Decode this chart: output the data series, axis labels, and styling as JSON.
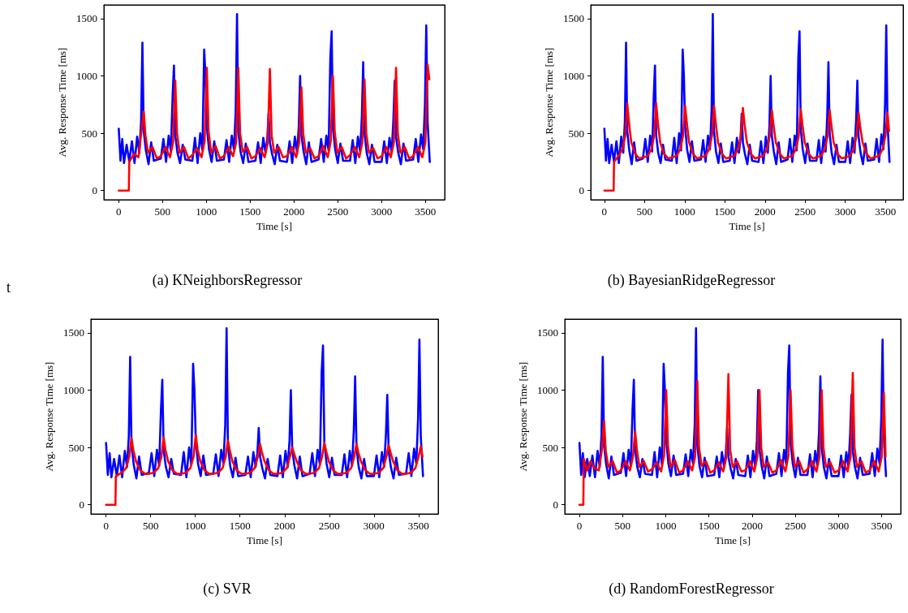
{
  "chart_data": [
    {
      "type": "line",
      "title": "(a) KNeighborsRegressor",
      "xlabel": "Time [s]",
      "ylabel": "Avg. Response Time [ms]",
      "xlim": [
        -170,
        3720
      ],
      "ylim": [
        -80,
        1620
      ],
      "xticks": [
        0,
        500,
        1000,
        1500,
        2000,
        2500,
        3000,
        3500
      ],
      "yticks": [
        0,
        500,
        1000,
        1500
      ],
      "annotations": [
        "t"
      ],
      "x": [
        0,
        20,
        40,
        60,
        90,
        120,
        150,
        180,
        210,
        235,
        255,
        270,
        285,
        310,
        340,
        370,
        400,
        480,
        510,
        540,
        570,
        595,
        615,
        630,
        645,
        670,
        700,
        730,
        760,
        840,
        870,
        900,
        930,
        955,
        975,
        990,
        1005,
        1030,
        1060,
        1090,
        1120,
        1200,
        1230,
        1260,
        1290,
        1315,
        1335,
        1350,
        1365,
        1390,
        1420,
        1450,
        1480,
        1560,
        1590,
        1620,
        1650,
        1675,
        1695,
        1710,
        1725,
        1750,
        1780,
        1810,
        1840,
        1920,
        1950,
        1980,
        2010,
        2035,
        2055,
        2070,
        2085,
        2110,
        2140,
        2170,
        2200,
        2280,
        2310,
        2340,
        2370,
        2395,
        2415,
        2430,
        2445,
        2470,
        2500,
        2530,
        2560,
        2640,
        2670,
        2700,
        2730,
        2755,
        2775,
        2790,
        2805,
        2830,
        2860,
        2890,
        2920,
        3000,
        3030,
        3060,
        3090,
        3115,
        3135,
        3150,
        3165,
        3190,
        3220,
        3250,
        3280,
        3360,
        3390,
        3420,
        3450,
        3475,
        3495,
        3510,
        3525,
        3550
      ],
      "series": [
        {
          "color": "#0000ff",
          "values": [
            540,
            260,
            450,
            240,
            400,
            250,
            430,
            240,
            470,
            330,
            600,
            1290,
            520,
            350,
            230,
            420,
            260,
            280,
            450,
            250,
            480,
            340,
            830,
            1090,
            480,
            330,
            240,
            400,
            270,
            260,
            460,
            240,
            500,
            350,
            1230,
            1000,
            560,
            360,
            250,
            430,
            260,
            270,
            440,
            250,
            480,
            360,
            700,
            1540,
            520,
            340,
            240,
            410,
            250,
            260,
            420,
            240,
            460,
            330,
            450,
            670,
            420,
            320,
            230,
            400,
            260,
            250,
            430,
            240,
            470,
            330,
            560,
            1000,
            480,
            340,
            230,
            420,
            250,
            270,
            450,
            250,
            480,
            350,
            1160,
            1390,
            540,
            360,
            240,
            410,
            260,
            260,
            440,
            240,
            470,
            340,
            650,
            1120,
            500,
            330,
            230,
            400,
            250,
            250,
            430,
            240,
            460,
            330,
            620,
            960,
            470,
            330,
            230,
            410,
            260,
            270,
            450,
            250,
            490,
            360,
            750,
            1440,
            600,
            250
          ]
        },
        {
          "color": "#ff0000",
          "x": [
            0,
            115,
            120,
            175,
            225,
            260,
            285,
            305,
            335,
            385,
            435,
            480,
            535,
            585,
            620,
            645,
            665,
            695,
            745,
            795,
            840,
            895,
            945,
            980,
            1005,
            1025,
            1055,
            1105,
            1155,
            1200,
            1255,
            1305,
            1340,
            1365,
            1385,
            1415,
            1465,
            1515,
            1560,
            1615,
            1665,
            1700,
            1725,
            1745,
            1775,
            1825,
            1875,
            1920,
            1975,
            2025,
            2060,
            2085,
            2105,
            2135,
            2185,
            2235,
            2280,
            2335,
            2385,
            2420,
            2445,
            2465,
            2495,
            2545,
            2595,
            2640,
            2695,
            2745,
            2780,
            2805,
            2825,
            2855,
            2905,
            2955,
            3000,
            3055,
            3105,
            3140,
            3165,
            3185,
            3215,
            3265,
            3315,
            3360,
            3415,
            3465,
            3500,
            3525,
            3545
          ],
          "values": [
            0,
            0,
            250,
            320,
            290,
            520,
            690,
            480,
            330,
            380,
            280,
            300,
            380,
            290,
            420,
            960,
            500,
            330,
            380,
            280,
            310,
            370,
            290,
            430,
            1070,
            520,
            330,
            390,
            280,
            300,
            380,
            300,
            420,
            1070,
            500,
            340,
            380,
            280,
            300,
            370,
            290,
            410,
            1060,
            480,
            330,
            380,
            290,
            300,
            380,
            290,
            420,
            900,
            500,
            330,
            370,
            280,
            300,
            390,
            290,
            430,
            1000,
            510,
            330,
            380,
            280,
            310,
            380,
            290,
            420,
            970,
            500,
            330,
            370,
            280,
            300,
            380,
            290,
            420,
            1070,
            500,
            330,
            380,
            280,
            300,
            380,
            290,
            420,
            1100,
            970
          ]
        }
      ]
    },
    {
      "type": "line",
      "title": "(b) BayesianRidgeRegressor",
      "xlabel": "Time [s]",
      "ylabel": "Avg. Response Time [ms]",
      "xlim": [
        -170,
        3720
      ],
      "ylim": [
        -80,
        1620
      ],
      "xticks": [
        0,
        500,
        1000,
        1500,
        2000,
        2500,
        3000,
        3500
      ],
      "yticks": [
        0,
        500,
        1000,
        1500
      ],
      "x": [
        0,
        20,
        40,
        60,
        90,
        120,
        150,
        180,
        210,
        235,
        255,
        270,
        285,
        310,
        340,
        370,
        400,
        480,
        510,
        540,
        570,
        595,
        615,
        630,
        645,
        670,
        700,
        730,
        760,
        840,
        870,
        900,
        930,
        955,
        975,
        990,
        1005,
        1030,
        1060,
        1090,
        1120,
        1200,
        1230,
        1260,
        1290,
        1315,
        1335,
        1350,
        1365,
        1390,
        1420,
        1450,
        1480,
        1560,
        1590,
        1620,
        1650,
        1675,
        1695,
        1710,
        1725,
        1750,
        1780,
        1810,
        1840,
        1920,
        1950,
        1980,
        2010,
        2035,
        2055,
        2070,
        2085,
        2110,
        2140,
        2170,
        2200,
        2280,
        2310,
        2340,
        2370,
        2395,
        2415,
        2430,
        2445,
        2470,
        2500,
        2530,
        2560,
        2640,
        2670,
        2700,
        2730,
        2755,
        2775,
        2790,
        2805,
        2830,
        2860,
        2890,
        2920,
        3000,
        3030,
        3060,
        3090,
        3115,
        3135,
        3150,
        3165,
        3190,
        3220,
        3250,
        3280,
        3360,
        3390,
        3420,
        3450,
        3475,
        3495,
        3510,
        3525,
        3550
      ],
      "series": [
        {
          "color": "#0000ff",
          "values": [
            540,
            260,
            450,
            240,
            400,
            250,
            430,
            240,
            470,
            330,
            600,
            1290,
            520,
            350,
            230,
            420,
            260,
            280,
            450,
            250,
            480,
            340,
            830,
            1090,
            480,
            330,
            240,
            400,
            270,
            260,
            460,
            240,
            500,
            350,
            1230,
            1000,
            560,
            360,
            250,
            430,
            260,
            270,
            440,
            250,
            480,
            360,
            700,
            1540,
            520,
            340,
            240,
            410,
            250,
            260,
            420,
            240,
            460,
            330,
            450,
            670,
            420,
            320,
            230,
            400,
            260,
            250,
            430,
            240,
            470,
            330,
            560,
            1000,
            480,
            340,
            230,
            420,
            250,
            270,
            450,
            250,
            480,
            350,
            1160,
            1390,
            540,
            360,
            240,
            410,
            260,
            260,
            440,
            240,
            470,
            340,
            650,
            1120,
            500,
            330,
            230,
            400,
            250,
            250,
            430,
            240,
            460,
            330,
            620,
            960,
            470,
            330,
            230,
            410,
            260,
            270,
            450,
            250,
            490,
            360,
            750,
            1440,
            600,
            250
          ]
        },
        {
          "color": "#ff0000",
          "x": [
            0,
            115,
            120,
            175,
            225,
            260,
            285,
            305,
            335,
            385,
            435,
            480,
            535,
            585,
            620,
            645,
            665,
            695,
            745,
            795,
            840,
            895,
            945,
            980,
            1005,
            1025,
            1055,
            1105,
            1155,
            1200,
            1255,
            1305,
            1340,
            1365,
            1385,
            1415,
            1465,
            1515,
            1560,
            1615,
            1665,
            1700,
            1725,
            1745,
            1775,
            1825,
            1875,
            1920,
            1975,
            2025,
            2060,
            2085,
            2105,
            2135,
            2185,
            2235,
            2280,
            2335,
            2385,
            2420,
            2445,
            2465,
            2495,
            2545,
            2595,
            2640,
            2695,
            2745,
            2780,
            2805,
            2825,
            2855,
            2905,
            2955,
            3000,
            3055,
            3105,
            3140,
            3165,
            3185,
            3215,
            3265,
            3315,
            3360,
            3415,
            3465,
            3500,
            3525,
            3545
          ],
          "values": [
            0,
            0,
            250,
            300,
            360,
            480,
            760,
            600,
            420,
            320,
            280,
            290,
            300,
            360,
            480,
            760,
            600,
            420,
            320,
            280,
            290,
            300,
            360,
            480,
            740,
            600,
            420,
            320,
            280,
            290,
            300,
            360,
            480,
            740,
            600,
            420,
            320,
            280,
            290,
            300,
            360,
            480,
            720,
            580,
            420,
            320,
            280,
            290,
            300,
            360,
            480,
            700,
            580,
            420,
            320,
            280,
            290,
            300,
            360,
            480,
            710,
            580,
            420,
            320,
            280,
            290,
            300,
            360,
            480,
            700,
            580,
            420,
            320,
            280,
            290,
            300,
            360,
            480,
            680,
            560,
            420,
            320,
            280,
            290,
            300,
            360,
            480,
            680,
            520
          ]
        }
      ]
    },
    {
      "type": "line",
      "title": "(c) SVR",
      "xlabel": "Time [s]",
      "ylabel": "Avg. Response Time [ms]",
      "xlim": [
        -170,
        3720
      ],
      "ylim": [
        -80,
        1620
      ],
      "xticks": [
        0,
        500,
        1000,
        1500,
        2000,
        2500,
        3000,
        3500
      ],
      "yticks": [
        0,
        500,
        1000,
        1500
      ],
      "x": [
        0,
        20,
        40,
        60,
        90,
        120,
        150,
        180,
        210,
        235,
        255,
        270,
        285,
        310,
        340,
        370,
        400,
        480,
        510,
        540,
        570,
        595,
        615,
        630,
        645,
        670,
        700,
        730,
        760,
        840,
        870,
        900,
        930,
        955,
        975,
        990,
        1005,
        1030,
        1060,
        1090,
        1120,
        1200,
        1230,
        1260,
        1290,
        1315,
        1335,
        1350,
        1365,
        1390,
        1420,
        1450,
        1480,
        1560,
        1590,
        1620,
        1650,
        1675,
        1695,
        1710,
        1725,
        1750,
        1780,
        1810,
        1840,
        1920,
        1950,
        1980,
        2010,
        2035,
        2055,
        2070,
        2085,
        2110,
        2140,
        2170,
        2200,
        2280,
        2310,
        2340,
        2370,
        2395,
        2415,
        2430,
        2445,
        2470,
        2500,
        2530,
        2560,
        2640,
        2670,
        2700,
        2730,
        2755,
        2775,
        2790,
        2805,
        2830,
        2860,
        2890,
        2920,
        3000,
        3030,
        3060,
        3090,
        3115,
        3135,
        3150,
        3165,
        3190,
        3220,
        3250,
        3280,
        3360,
        3390,
        3420,
        3450,
        3475,
        3495,
        3510,
        3525,
        3550
      ],
      "series": [
        {
          "color": "#0000ff",
          "values": [
            540,
            260,
            450,
            240,
            400,
            250,
            430,
            240,
            470,
            330,
            600,
            1290,
            520,
            350,
            230,
            420,
            260,
            280,
            450,
            250,
            480,
            340,
            830,
            1090,
            480,
            330,
            240,
            400,
            270,
            260,
            460,
            240,
            500,
            350,
            1230,
            1000,
            560,
            360,
            250,
            430,
            260,
            270,
            440,
            250,
            480,
            360,
            700,
            1540,
            520,
            340,
            240,
            410,
            250,
            260,
            420,
            240,
            460,
            330,
            450,
            670,
            420,
            320,
            230,
            400,
            260,
            250,
            430,
            240,
            470,
            330,
            560,
            1000,
            480,
            340,
            230,
            420,
            250,
            270,
            450,
            250,
            480,
            350,
            1160,
            1390,
            540,
            360,
            240,
            410,
            260,
            260,
            440,
            240,
            470,
            340,
            650,
            1120,
            500,
            330,
            230,
            400,
            250,
            250,
            430,
            240,
            460,
            330,
            620,
            960,
            470,
            330,
            230,
            410,
            260,
            270,
            450,
            250,
            490,
            360,
            750,
            1440,
            600,
            250
          ]
        },
        {
          "color": "#ff0000",
          "x": [
            0,
            105,
            110,
            175,
            225,
            260,
            285,
            305,
            335,
            385,
            435,
            480,
            535,
            585,
            620,
            645,
            665,
            695,
            745,
            795,
            840,
            895,
            945,
            980,
            1005,
            1025,
            1055,
            1105,
            1155,
            1200,
            1255,
            1305,
            1340,
            1365,
            1385,
            1415,
            1465,
            1515,
            1560,
            1615,
            1665,
            1700,
            1725,
            1745,
            1775,
            1825,
            1875,
            1920,
            1975,
            2025,
            2060,
            2085,
            2105,
            2135,
            2185,
            2235,
            2280,
            2335,
            2385,
            2420,
            2445,
            2465,
            2495,
            2545,
            2595,
            2640,
            2695,
            2745,
            2780,
            2805,
            2825,
            2855,
            2905,
            2955,
            3000,
            3055,
            3105,
            3140,
            3165,
            3185,
            3215,
            3265,
            3315,
            3360,
            3415,
            3465,
            3500,
            3525,
            3545
          ],
          "values": [
            0,
            0,
            250,
            280,
            320,
            420,
            580,
            480,
            380,
            300,
            270,
            270,
            280,
            320,
            420,
            590,
            480,
            380,
            300,
            270,
            270,
            280,
            320,
            420,
            610,
            480,
            380,
            300,
            270,
            270,
            280,
            320,
            420,
            560,
            480,
            380,
            300,
            270,
            270,
            280,
            320,
            420,
            530,
            460,
            380,
            300,
            270,
            270,
            280,
            320,
            420,
            500,
            450,
            380,
            300,
            270,
            270,
            280,
            320,
            420,
            540,
            470,
            380,
            300,
            270,
            270,
            280,
            320,
            420,
            530,
            460,
            380,
            300,
            270,
            270,
            280,
            320,
            420,
            520,
            460,
            380,
            300,
            270,
            270,
            280,
            320,
            420,
            510,
            420
          ]
        }
      ]
    },
    {
      "type": "line",
      "title": "(d) RandomForestRegressor",
      "xlabel": "Time [s]",
      "ylabel": "Avg. Response Time [ms]",
      "xlim": [
        -170,
        3720
      ],
      "ylim": [
        -80,
        1620
      ],
      "xticks": [
        0,
        500,
        1000,
        1500,
        2000,
        2500,
        3000,
        3500
      ],
      "yticks": [
        0,
        500,
        1000,
        1500
      ],
      "x": [
        0,
        20,
        40,
        60,
        90,
        120,
        150,
        180,
        210,
        235,
        255,
        270,
        285,
        310,
        340,
        370,
        400,
        480,
        510,
        540,
        570,
        595,
        615,
        630,
        645,
        670,
        700,
        730,
        760,
        840,
        870,
        900,
        930,
        955,
        975,
        990,
        1005,
        1030,
        1060,
        1090,
        1120,
        1200,
        1230,
        1260,
        1290,
        1315,
        1335,
        1350,
        1365,
        1390,
        1420,
        1450,
        1480,
        1560,
        1590,
        1620,
        1650,
        1675,
        1695,
        1710,
        1725,
        1750,
        1780,
        1810,
        1840,
        1920,
        1950,
        1980,
        2010,
        2035,
        2055,
        2070,
        2085,
        2110,
        2140,
        2170,
        2200,
        2280,
        2310,
        2340,
        2370,
        2395,
        2415,
        2430,
        2445,
        2470,
        2500,
        2530,
        2560,
        2640,
        2670,
        2700,
        2730,
        2755,
        2775,
        2790,
        2805,
        2830,
        2860,
        2890,
        2920,
        3000,
        3030,
        3060,
        3090,
        3115,
        3135,
        3150,
        3165,
        3190,
        3220,
        3250,
        3280,
        3360,
        3390,
        3420,
        3450,
        3475,
        3495,
        3510,
        3525,
        3550
      ],
      "series": [
        {
          "color": "#0000ff",
          "values": [
            540,
            260,
            450,
            240,
            400,
            250,
            430,
            240,
            470,
            330,
            600,
            1290,
            520,
            350,
            230,
            420,
            260,
            280,
            450,
            250,
            480,
            340,
            830,
            1090,
            480,
            330,
            240,
            400,
            270,
            260,
            460,
            240,
            500,
            350,
            1230,
            1000,
            560,
            360,
            250,
            430,
            260,
            270,
            440,
            250,
            480,
            360,
            700,
            1540,
            520,
            340,
            240,
            410,
            250,
            260,
            420,
            240,
            460,
            330,
            450,
            670,
            420,
            320,
            230,
            400,
            260,
            250,
            430,
            240,
            470,
            330,
            560,
            1000,
            480,
            340,
            230,
            420,
            250,
            270,
            450,
            250,
            480,
            350,
            1160,
            1390,
            540,
            360,
            240,
            410,
            260,
            260,
            440,
            240,
            470,
            340,
            650,
            1120,
            500,
            330,
            230,
            400,
            250,
            250,
            430,
            240,
            460,
            330,
            620,
            960,
            470,
            330,
            230,
            410,
            260,
            270,
            450,
            250,
            490,
            360,
            750,
            1440,
            600,
            250
          ]
        },
        {
          "color": "#ff0000",
          "x": [
            0,
            45,
            50,
            90,
            130,
            175,
            225,
            260,
            285,
            305,
            335,
            385,
            435,
            480,
            535,
            585,
            620,
            645,
            665,
            695,
            745,
            795,
            840,
            895,
            945,
            980,
            1005,
            1025,
            1055,
            1105,
            1155,
            1200,
            1255,
            1305,
            1340,
            1365,
            1385,
            1415,
            1465,
            1515,
            1560,
            1615,
            1665,
            1700,
            1725,
            1745,
            1775,
            1825,
            1875,
            1920,
            1975,
            2025,
            2060,
            2085,
            2105,
            2135,
            2185,
            2235,
            2280,
            2335,
            2385,
            2420,
            2445,
            2465,
            2495,
            2545,
            2595,
            2640,
            2695,
            2745,
            2780,
            2805,
            2825,
            2855,
            2905,
            2955,
            3000,
            3055,
            3105,
            3140,
            3165,
            3185,
            3215,
            3265,
            3315,
            3360,
            3415,
            3465,
            3500,
            3525,
            3545
          ],
          "values": [
            0,
            0,
            400,
            300,
            380,
            320,
            300,
            480,
            730,
            470,
            330,
            380,
            280,
            300,
            380,
            300,
            420,
            640,
            480,
            330,
            380,
            290,
            310,
            370,
            290,
            430,
            1000,
            520,
            330,
            390,
            280,
            300,
            380,
            300,
            420,
            1080,
            500,
            340,
            380,
            280,
            300,
            370,
            290,
            410,
            1140,
            480,
            330,
            380,
            290,
            300,
            380,
            290,
            420,
            1000,
            500,
            330,
            370,
            280,
            300,
            390,
            290,
            430,
            1000,
            510,
            330,
            380,
            280,
            310,
            380,
            290,
            420,
            1000,
            500,
            330,
            370,
            280,
            300,
            380,
            290,
            420,
            1150,
            500,
            330,
            380,
            280,
            300,
            380,
            290,
            420,
            980,
            420
          ]
        }
      ]
    }
  ]
}
